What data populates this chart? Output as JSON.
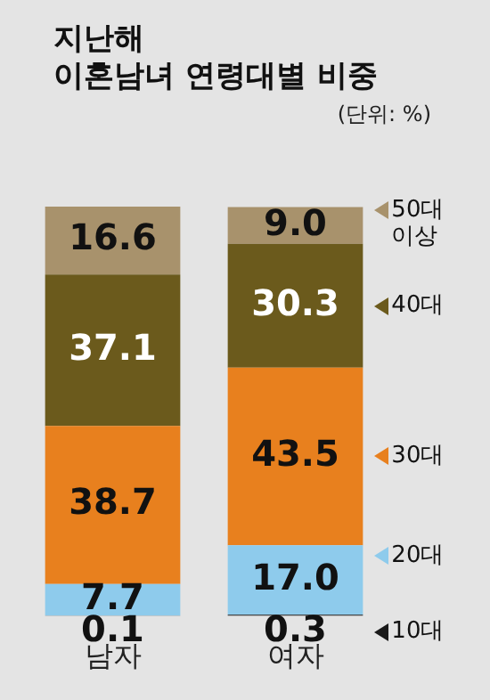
{
  "chart_data": {
    "type": "bar",
    "title": "지난해\n이혼남녀 연령대별 비중",
    "subtitle": "(단위: %)",
    "categories": [
      "남자",
      "여자"
    ],
    "stacked": true,
    "legend": "right",
    "grid": false,
    "tick_labels": "x",
    "series": [
      {
        "name": "10대",
        "color": "#1a1a1a",
        "values": [
          0.1,
          0.3
        ],
        "value_labels": [
          "0.1",
          "0.3"
        ]
      },
      {
        "name": "20대",
        "color": "#8ecbec",
        "values": [
          7.7,
          17.0
        ],
        "value_labels": [
          "7.7",
          "17.0"
        ]
      },
      {
        "name": "30대",
        "color": "#e8801e",
        "values": [
          38.7,
          43.5
        ],
        "value_labels": [
          "38.7",
          "43.5"
        ]
      },
      {
        "name": "40대",
        "color": "#6b5a1c",
        "values": [
          37.1,
          30.3
        ],
        "value_labels": [
          "37.1",
          "30.3"
        ]
      },
      {
        "name": "50대 이상",
        "color": "#a8926c",
        "values": [
          16.6,
          9.0
        ],
        "value_labels": [
          "16.6",
          "9.0"
        ]
      }
    ]
  }
}
